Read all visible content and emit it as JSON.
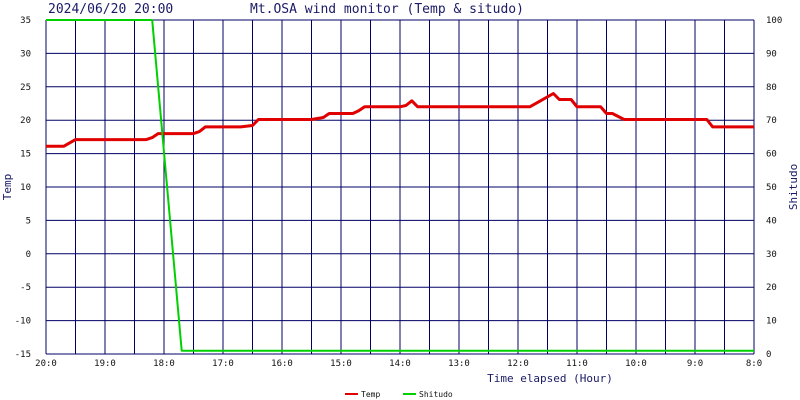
{
  "chart_data": {
    "type": "line",
    "timestamp": "2024/06/20 20:00",
    "title": "Mt.OSA wind monitor (Temp & situdo)",
    "xlabel": "Time elapsed (Hour)",
    "ylabel_left": "Temp",
    "ylabel_right": "Shitudo",
    "x_ticks": [
      "20:0",
      "19:0",
      "18:0",
      "17:0",
      "16:0",
      "15:0",
      "14:0",
      "13:0",
      "12:0",
      "11:0",
      "10:0",
      "9:0",
      "8:0"
    ],
    "x_range_hours_ago": [
      0,
      12
    ],
    "ylim_left": [
      -15,
      35
    ],
    "y_ticks_left": [
      "35",
      "30",
      "25",
      "20",
      "15",
      "10",
      "5",
      "0",
      "-5",
      "-10",
      "-15"
    ],
    "ylim_right": [
      0,
      100
    ],
    "y_ticks_right": [
      "100",
      "90",
      "80",
      "70",
      "60",
      "50",
      "40",
      "30",
      "20",
      "10",
      "0"
    ],
    "grid": true,
    "legend_position": "bottom-center",
    "series": [
      {
        "name": "Temp",
        "axis": "left",
        "color": "#e00000",
        "points": [
          [
            0.0,
            16.1
          ],
          [
            0.3,
            16.1
          ],
          [
            0.5,
            17.1
          ],
          [
            1.0,
            17.1
          ],
          [
            1.5,
            17.1
          ],
          [
            1.7,
            17.1
          ],
          [
            1.8,
            17.4
          ],
          [
            1.9,
            18.0
          ],
          [
            2.2,
            18.0
          ],
          [
            2.5,
            18.0
          ],
          [
            2.6,
            18.3
          ],
          [
            2.7,
            19.0
          ],
          [
            3.0,
            19.0
          ],
          [
            3.3,
            19.0
          ],
          [
            3.5,
            19.2
          ],
          [
            3.6,
            20.1
          ],
          [
            4.0,
            20.1
          ],
          [
            4.5,
            20.1
          ],
          [
            4.7,
            20.4
          ],
          [
            4.8,
            21.0
          ],
          [
            5.0,
            21.0
          ],
          [
            5.2,
            21.0
          ],
          [
            5.3,
            21.4
          ],
          [
            5.4,
            22.0
          ],
          [
            6.0,
            22.0
          ],
          [
            6.1,
            22.2
          ],
          [
            6.2,
            22.9
          ],
          [
            6.3,
            22.0
          ],
          [
            7.0,
            22.0
          ],
          [
            8.0,
            22.0
          ],
          [
            8.2,
            22.0
          ],
          [
            8.4,
            23.0
          ],
          [
            8.6,
            24.0
          ],
          [
            8.7,
            23.1
          ],
          [
            8.9,
            23.1
          ],
          [
            9.0,
            22.0
          ],
          [
            9.4,
            22.0
          ],
          [
            9.5,
            21.0
          ],
          [
            9.6,
            21.0
          ],
          [
            9.8,
            20.1
          ],
          [
            10.0,
            20.1
          ],
          [
            11.0,
            20.1
          ],
          [
            11.2,
            20.1
          ],
          [
            11.3,
            19.0
          ],
          [
            12.0,
            19.0
          ]
        ]
      },
      {
        "name": "Shitudo",
        "axis": "right",
        "color": "#00d000",
        "points": [
          [
            0.0,
            100
          ],
          [
            1.8,
            100
          ],
          [
            2.3,
            1
          ],
          [
            12.0,
            1
          ]
        ]
      }
    ]
  }
}
